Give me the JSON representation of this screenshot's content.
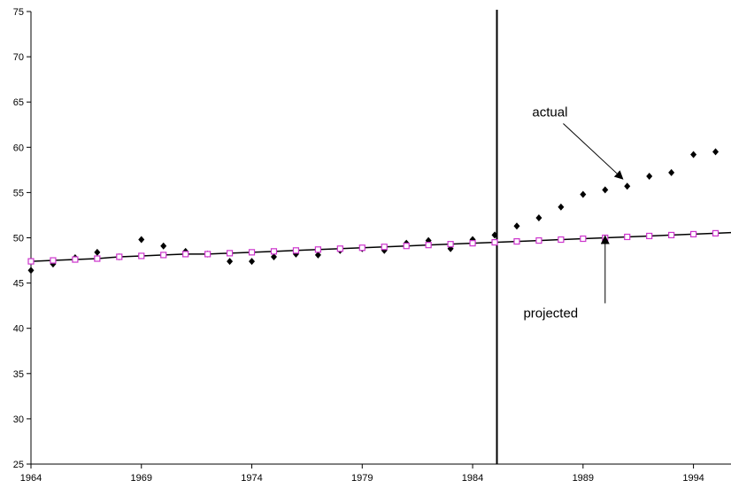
{
  "chart_data": {
    "type": "scatter",
    "title": "",
    "xlabel": "",
    "ylabel": "",
    "xlim": [
      1964,
      1995.7
    ],
    "ylim": [
      25,
      75
    ],
    "x_ticks": [
      1964,
      1969,
      1974,
      1979,
      1984,
      1989,
      1994
    ],
    "y_ticks": [
      25,
      30,
      35,
      40,
      45,
      50,
      55,
      60,
      65,
      70,
      75
    ],
    "grid": false,
    "colors": {
      "actual": "#000000",
      "projected_marker": "#cc33cc",
      "projected_line": "#000000"
    },
    "vertical_line_x": 1985.1,
    "series": [
      {
        "name": "actual",
        "marker": "diamond",
        "x": [
          1964,
          1965,
          1966,
          1967,
          1968,
          1969,
          1970,
          1971,
          1972,
          1973,
          1974,
          1975,
          1976,
          1977,
          1978,
          1979,
          1980,
          1981,
          1982,
          1983,
          1984,
          1985,
          1986,
          1987,
          1988,
          1989,
          1990,
          1991,
          1992,
          1993,
          1994,
          1995
        ],
        "y": [
          46.4,
          47.1,
          47.8,
          48.4,
          47.9,
          49.8,
          49.1,
          48.5,
          48.2,
          47.4,
          47.4,
          47.9,
          48.2,
          48.1,
          48.6,
          48.8,
          48.6,
          49.4,
          49.7,
          48.8,
          49.8,
          50.3,
          51.3,
          52.2,
          53.4,
          54.8,
          55.3,
          55.7,
          56.8,
          57.2,
          59.2,
          59.5
        ]
      },
      {
        "name": "projected",
        "marker": "square",
        "x": [
          1964,
          1965,
          1966,
          1967,
          1968,
          1969,
          1970,
          1971,
          1972,
          1973,
          1974,
          1975,
          1976,
          1977,
          1978,
          1979,
          1980,
          1981,
          1982,
          1983,
          1984,
          1985,
          1986,
          1987,
          1988,
          1989,
          1990,
          1991,
          1992,
          1993,
          1994,
          1995
        ],
        "y": [
          47.4,
          47.5,
          47.6,
          47.7,
          47.9,
          48.0,
          48.1,
          48.2,
          48.2,
          48.3,
          48.4,
          48.5,
          48.6,
          48.7,
          48.8,
          48.9,
          49.0,
          49.1,
          49.2,
          49.3,
          49.4,
          49.5,
          49.6,
          49.7,
          49.8,
          49.9,
          50.0,
          50.1,
          50.2,
          50.3,
          50.4,
          50.5
        ]
      }
    ],
    "annotations": [
      {
        "text": "actual",
        "text_x": 1986.7,
        "text_y": 63.4,
        "arrow_to_x": 1990.8,
        "arrow_to_y": 56.5
      },
      {
        "text": "projected",
        "text_x": 1986.3,
        "text_y": 41.2,
        "arrow_to_x": 1990.0,
        "arrow_to_y": 50.2
      }
    ]
  }
}
